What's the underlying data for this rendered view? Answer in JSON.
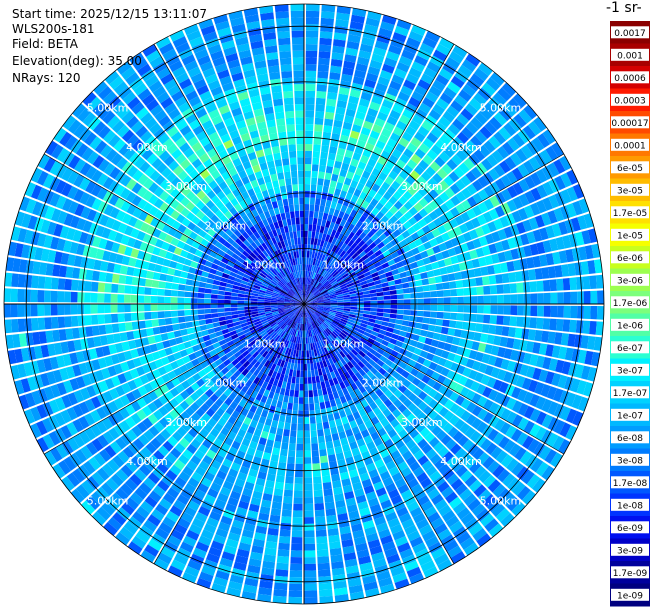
{
  "header": {
    "start_time": "Start time: 2025/12/15 13:11:07",
    "instrument": "WLS200s-181",
    "field": "Field: BETA",
    "elevation": "Elevation(deg): 35.00",
    "nrays": "NRays: 120"
  },
  "colorbar": {
    "unit_label": "-1 sr-",
    "labels": [
      "0.0017",
      "0.001",
      "0.0006",
      "0.0003",
      "0.00017",
      "0.0001",
      "6e-05",
      "3e-05",
      "1.7e-05",
      "1e-05",
      "6e-06",
      "3e-06",
      "1.7e-06",
      "1e-06",
      "6e-07",
      "3e-07",
      "1.7e-07",
      "1e-07",
      "6e-08",
      "3e-08",
      "1.7e-08",
      "1e-08",
      "6e-09",
      "3e-09",
      "1.7e-09",
      "1e-09"
    ],
    "colors": [
      "#8b0000",
      "#a80000",
      "#d40000",
      "#ff1a00",
      "#ff4a00",
      "#ff7800",
      "#ff9a00",
      "#ffbc00",
      "#ffe000",
      "#f6ff00",
      "#c8ff1e",
      "#9cff50",
      "#7cff7c",
      "#52ffa6",
      "#2bffd2",
      "#00f0ff",
      "#00d2ff",
      "#00b8ff",
      "#009cff",
      "#007cff",
      "#0058ff",
      "#0034ff",
      "#0010f0",
      "#0000c8",
      "#00009c",
      "#000080"
    ]
  },
  "chart_data": {
    "type": "polar-ppi",
    "field": "BETA",
    "elevation_deg": 35.0,
    "nrays": 120,
    "range_rings_km": [
      1.0,
      2.0,
      3.0,
      4.0,
      5.0
    ],
    "ring_labels": [
      "1.00km",
      "2.00km",
      "3.00km",
      "4.00km",
      "5.00km"
    ],
    "max_range_km": 5.4,
    "color_scale": "log",
    "value_range": [
      1e-09,
      0.0017
    ],
    "pattern_by_range_km": [
      {
        "range_km": [
          0.0,
          2.0
        ],
        "dominant": "3e-09 to 3e-08 (blue)"
      },
      {
        "range_km": [
          2.0,
          4.0
        ],
        "dominant": "1e-07 to 1e-06 (cyan-green)"
      },
      {
        "range_km": [
          4.0,
          5.4
        ],
        "dominant": "1e-08 to 1e-07 (light blue)"
      }
    ]
  }
}
